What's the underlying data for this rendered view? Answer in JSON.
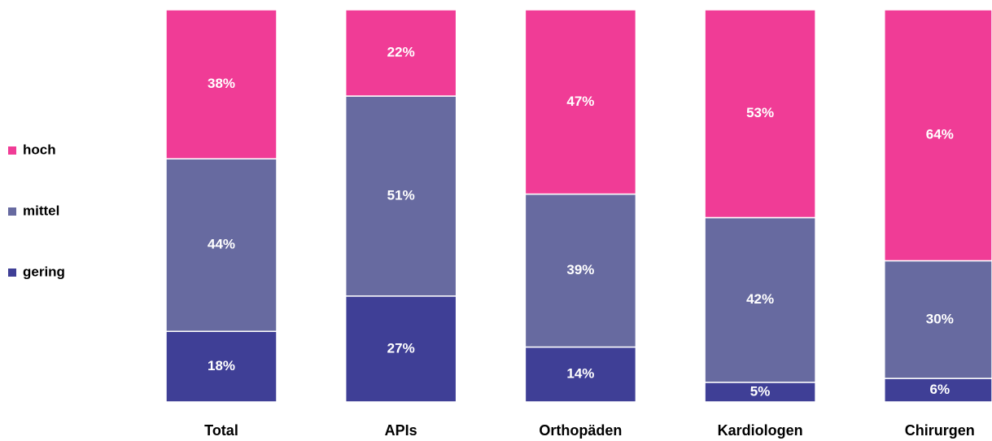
{
  "chart_data": {
    "type": "stacked_bar",
    "categories": [
      "Total",
      "APIs",
      "Orthopäden",
      "Kardiologen",
      "Chirurgen"
    ],
    "ylim": [
      0,
      100
    ],
    "series": [
      {
        "name": "gering",
        "color": "#3f3f96",
        "values": [
          18,
          27,
          14,
          5,
          6
        ],
        "value_labels": [
          "18%",
          "27%",
          "14%",
          "5%",
          "6%"
        ]
      },
      {
        "name": "mittel",
        "color": "#676aa0",
        "values": [
          44,
          51,
          39,
          42,
          30
        ],
        "value_labels": [
          "44%",
          "51%",
          "39%",
          "42%",
          "30%"
        ]
      },
      {
        "name": "hoch",
        "color": "#f03c96",
        "values": [
          38,
          22,
          47,
          53,
          64
        ],
        "value_labels": [
          "38%",
          "22%",
          "47%",
          "53%",
          "64%"
        ]
      }
    ]
  }
}
